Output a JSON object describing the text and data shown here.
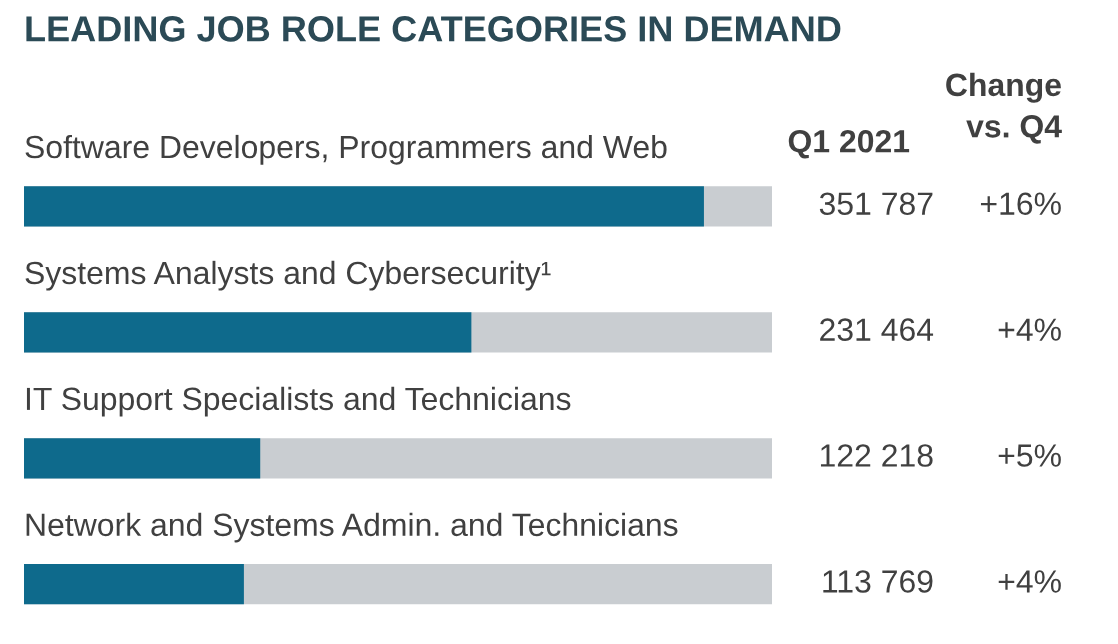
{
  "chart_data": {
    "type": "bar",
    "orientation": "horizontal",
    "title": "LEADING JOB ROLE CATEGORIES IN DEMAND",
    "categories": [
      "Software Developers, Programmers and Web",
      "Systems Analysts and Cybersecurity¹",
      "IT Support Specialists and Technicians",
      "Network and Systems Admin. and Technicians"
    ],
    "values": [
      351787,
      231464,
      122218,
      113769
    ],
    "value_labels": [
      "351 787",
      "231 464",
      "122 218",
      "113 769"
    ],
    "color": "#0e6a8c",
    "xlim": [
      0,
      387000
    ],
    "annotations": [
      "Q1 2021",
      "Change\nvs. Q4",
      "+16%",
      "+4%",
      "+5%",
      "+4%"
    ]
  }
}
